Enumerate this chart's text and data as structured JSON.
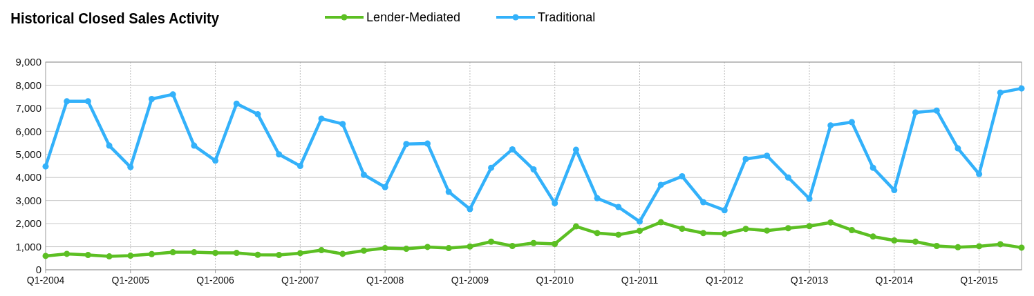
{
  "chart_data": {
    "type": "line",
    "title": "Historical Closed Sales Activity",
    "categories": [
      "Q1-2004",
      null,
      null,
      null,
      "Q1-2005",
      null,
      null,
      null,
      "Q1-2006",
      null,
      null,
      null,
      "Q1-2007",
      null,
      null,
      null,
      "Q1-2008",
      null,
      null,
      null,
      "Q1-2009",
      null,
      null,
      null,
      "Q1-2010",
      null,
      null,
      null,
      "Q1-2011",
      null,
      null,
      null,
      "Q1-2012",
      null,
      null,
      null,
      "Q1-2013",
      null,
      null,
      null,
      "Q1-2014",
      null,
      null,
      null,
      "Q1-2015",
      null,
      null
    ],
    "series": [
      {
        "name": "Lender-Mediated",
        "color": "#5cbf23",
        "values": [
          600,
          690,
          640,
          580,
          610,
          680,
          760,
          760,
          730,
          730,
          650,
          640,
          720,
          850,
          690,
          830,
          940,
          910,
          990,
          940,
          1010,
          1220,
          1030,
          1160,
          1120,
          1880,
          1590,
          1520,
          1690,
          2060,
          1780,
          1590,
          1560,
          1770,
          1700,
          1800,
          1890,
          2050,
          1720,
          1440,
          1270,
          1220,
          1030,
          980,
          1020,
          1110,
          960
        ]
      },
      {
        "name": "Traditional",
        "color": "#33b1fa",
        "values": [
          4480,
          7300,
          7300,
          5380,
          4450,
          7400,
          7600,
          5380,
          4730,
          7200,
          6740,
          5000,
          4500,
          6550,
          6320,
          4120,
          3580,
          5450,
          5470,
          3380,
          2630,
          4420,
          5220,
          4350,
          2880,
          5200,
          3100,
          2720,
          2090,
          3680,
          4050,
          2930,
          2580,
          4800,
          4940,
          4000,
          3080,
          6260,
          6400,
          4420,
          3450,
          6820,
          6900,
          5260,
          4150,
          7680,
          7860
        ]
      }
    ],
    "ylim": [
      0,
      9000
    ],
    "yticks": [
      {
        "value": 0,
        "label": "0"
      },
      {
        "value": 1000,
        "label": "1,000"
      },
      {
        "value": 2000,
        "label": "2,000"
      },
      {
        "value": 3000,
        "label": "3,000"
      },
      {
        "value": 4000,
        "label": "4,000"
      },
      {
        "value": 5000,
        "label": "5,000"
      },
      {
        "value": 6000,
        "label": "6,000"
      },
      {
        "value": 7000,
        "label": "7,000"
      },
      {
        "value": 8000,
        "label": "8,000"
      },
      {
        "value": 9000,
        "label": "9,000"
      }
    ],
    "grid": true,
    "legend": "top",
    "marker": "circle",
    "line_style": "solid"
  }
}
